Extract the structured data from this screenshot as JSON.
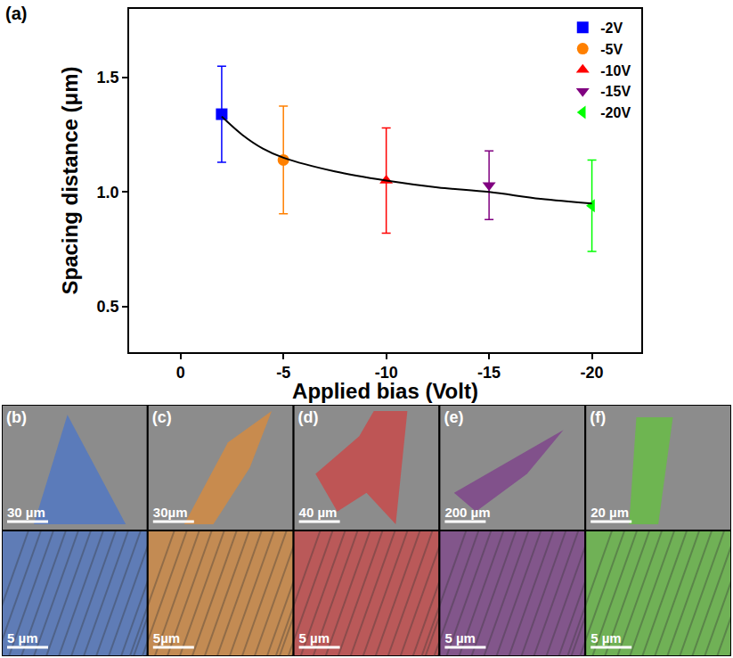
{
  "chart_data": {
    "type": "scatter",
    "label": "(a)",
    "x_label": "Applied bias (Volt)",
    "y_label": "Spacing distance (μm)",
    "xlim": [
      2.5,
      -22.4
    ],
    "xticks": [
      0,
      -5,
      -10,
      -15,
      -20
    ],
    "ylim": [
      0.3,
      1.8
    ],
    "yticks": [
      0.5,
      {
        "value": 1,
        "label": "1.0"
      },
      1.5
    ],
    "grid": false,
    "legend": "upper right",
    "series": [
      {
        "name": "-2V",
        "color": "#0000ff",
        "marker": "square",
        "x": [
          -2
        ],
        "values": [
          1.34
        ],
        "error": [
          0.21
        ]
      },
      {
        "name": "-5V",
        "color": "#ff8000",
        "marker": "circle",
        "x": [
          -5
        ],
        "values": [
          1.14
        ],
        "error": [
          0.235
        ]
      },
      {
        "name": "-10V",
        "color": "#ff0000",
        "marker": "triangle-up",
        "x": [
          -10
        ],
        "values": [
          1.05
        ],
        "error": [
          0.23
        ]
      },
      {
        "name": "-15V",
        "color": "#800080",
        "marker": "triangle-down",
        "x": [
          -15
        ],
        "values": [
          1.03
        ],
        "error": [
          0.15
        ]
      },
      {
        "name": "-20V",
        "color": "#00ff00",
        "marker": "triangle-left",
        "x": [
          -20
        ],
        "values": [
          0.94
        ],
        "error": [
          0.2
        ]
      },
      {
        "type": "line",
        "color": "#000000",
        "line_style": "solid",
        "x": [
          -2,
          -3,
          -4,
          -5,
          -7.5,
          -10,
          -12.5,
          -15,
          -17.5,
          -20
        ],
        "values": [
          1.33,
          1.25,
          1.19,
          1.15,
          1.09,
          1.05,
          1.02,
          1.0,
          0.97,
          0.95
        ]
      }
    ]
  },
  "panels": [
    {
      "label": "(b)",
      "color": "#3a6fd8",
      "scale_bars": [
        "30 µm",
        "5 µm"
      ]
    },
    {
      "label": "(c)",
      "color": "#f08a24",
      "scale_bars": [
        "30µm",
        "5µm"
      ]
    },
    {
      "label": "(d)",
      "color": "#e03030",
      "scale_bars": [
        "40 µm",
        "5 µm"
      ]
    },
    {
      "label": "(e)",
      "color": "#7a2a8a",
      "scale_bars": [
        "200 µm",
        "5 µm"
      ]
    },
    {
      "label": "(f)",
      "color": "#5ad02a",
      "scale_bars": [
        "20 µm",
        "5 µm"
      ]
    }
  ]
}
